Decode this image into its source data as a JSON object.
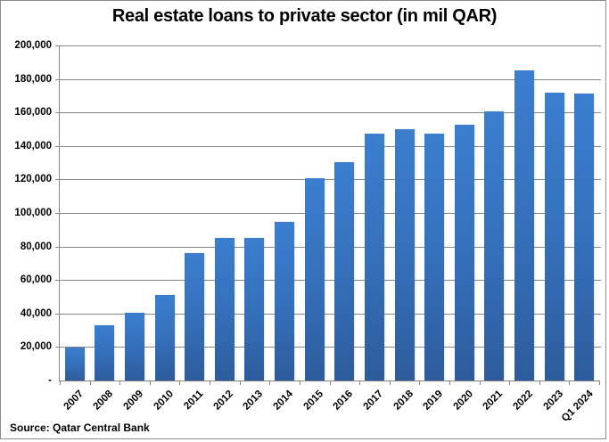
{
  "chart": {
    "title": "Real estate loans to private sector (in mil QAR)",
    "source": "Source: Qatar Central Bank",
    "y_ticks": [
      "200,000",
      "180,000",
      "160,000",
      "140,000",
      "120,000",
      "100,000",
      "80,000",
      "60,000",
      "40,000",
      "20,000",
      "-"
    ],
    "bar_color_top": "#3b7ecf",
    "bar_color_bottom": "#2d5c9c"
  },
  "chart_data": {
    "type": "bar",
    "title": "Real estate loans to private sector (in mil QAR)",
    "xlabel": "",
    "ylabel": "",
    "categories": [
      "2007",
      "2008",
      "2009",
      "2010",
      "2011",
      "2012",
      "2013",
      "2014",
      "2015",
      "2016",
      "2017",
      "2018",
      "2019",
      "2020",
      "2021",
      "2022",
      "2023",
      "Q1 2024"
    ],
    "values": [
      19700,
      33000,
      40600,
      51200,
      76200,
      85300,
      84900,
      94700,
      120700,
      130300,
      147300,
      150000,
      147300,
      152700,
      160600,
      185100,
      171800,
      171300
    ],
    "ylim": [
      0,
      200000
    ],
    "yticks": [
      0,
      20000,
      40000,
      60000,
      80000,
      100000,
      120000,
      140000,
      160000,
      180000,
      200000
    ],
    "grid": true,
    "legend": null,
    "source": "Source: Qatar Central Bank",
    "color": "#3a75c4"
  }
}
